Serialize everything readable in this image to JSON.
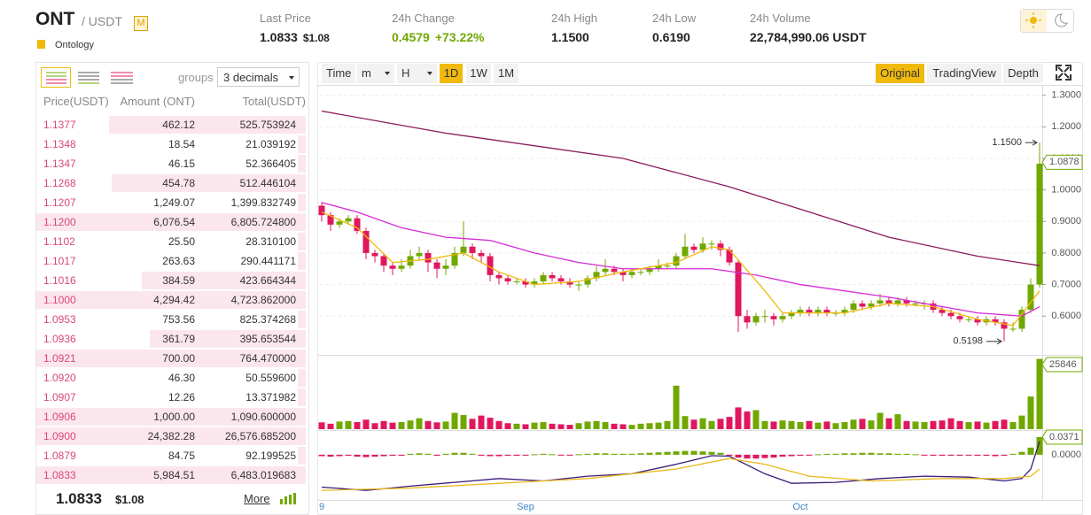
{
  "header": {
    "symbol": "ONT",
    "quote": "/ USDT",
    "badge": "M",
    "name": "Ontology",
    "stats": [
      {
        "label": "Last Price",
        "value": "1.0833",
        "sub": "$1.08"
      },
      {
        "label": "24h Change",
        "value": "0.4579",
        "sub": "+73.22%"
      },
      {
        "label": "24h High",
        "value": "1.1500"
      },
      {
        "label": "24h Low",
        "value": "0.6190"
      },
      {
        "label": "24h Volume",
        "value": "22,784,990.06 USDT"
      }
    ]
  },
  "orderbook": {
    "groups_label": "groups",
    "decimals": "3 decimals",
    "columns": [
      "Price(USDT)",
      "Amount (ONT)",
      "Total(USDT)"
    ],
    "rows": [
      [
        "1.1377",
        "462.12",
        "525.753924",
        73
      ],
      [
        "1.1348",
        "18.54",
        "21.039192",
        3
      ],
      [
        "1.1347",
        "46.15",
        "52.366405",
        3
      ],
      [
        "1.1268",
        "454.78",
        "512.446104",
        72
      ],
      [
        "1.1207",
        "1,249.07",
        "1,399.832749",
        3
      ],
      [
        "1.1200",
        "6,076.54",
        "6,805.724800",
        100
      ],
      [
        "1.1102",
        "25.50",
        "28.310100",
        3
      ],
      [
        "1.1017",
        "263.63",
        "290.441171",
        3
      ],
      [
        "1.1016",
        "384.59",
        "423.664344",
        61
      ],
      [
        "1.1000",
        "4,294.42",
        "4,723.862000",
        100
      ],
      [
        "1.0953",
        "753.56",
        "825.374268",
        3
      ],
      [
        "1.0936",
        "361.79",
        "395.653544",
        58
      ],
      [
        "1.0921",
        "700.00",
        "764.470000",
        100
      ],
      [
        "1.0920",
        "46.30",
        "50.559600",
        3
      ],
      [
        "1.0907",
        "12.26",
        "13.371982",
        3
      ],
      [
        "1.0906",
        "1,000.00",
        "1,090.600000",
        100
      ],
      [
        "1.0900",
        "24,382.28",
        "26,576.685200",
        100
      ],
      [
        "1.0879",
        "84.75",
        "92.199525",
        3
      ],
      [
        "1.0833",
        "5,984.51",
        "6,483.019683",
        100
      ]
    ],
    "last_price": "1.0833",
    "last_usd": "$1.08",
    "more": "More"
  },
  "toolbar": {
    "left": [
      "Time",
      "m",
      "H",
      "1D",
      "1W",
      "1M"
    ],
    "left_active": 3,
    "right": [
      "Original",
      "TradingView",
      "Depth"
    ],
    "right_active": 0
  },
  "chart_data": {
    "type": "candlestick",
    "up_color": "#70a800",
    "down_color": "#e0175e",
    "candles": [
      [
        0.95,
        0.96,
        0.9,
        0.92
      ],
      [
        0.92,
        0.93,
        0.87,
        0.89
      ],
      [
        0.89,
        0.91,
        0.88,
        0.9
      ],
      [
        0.9,
        0.92,
        0.89,
        0.91
      ],
      [
        0.91,
        0.92,
        0.86,
        0.87
      ],
      [
        0.87,
        0.88,
        0.78,
        0.8
      ],
      [
        0.8,
        0.81,
        0.77,
        0.79
      ],
      [
        0.79,
        0.8,
        0.74,
        0.76
      ],
      [
        0.76,
        0.77,
        0.73,
        0.75
      ],
      [
        0.75,
        0.78,
        0.74,
        0.76
      ],
      [
        0.76,
        0.81,
        0.75,
        0.79
      ],
      [
        0.79,
        0.82,
        0.78,
        0.8
      ],
      [
        0.8,
        0.81,
        0.74,
        0.77
      ],
      [
        0.77,
        0.78,
        0.72,
        0.75
      ],
      [
        0.75,
        0.78,
        0.73,
        0.76
      ],
      [
        0.76,
        0.82,
        0.75,
        0.8
      ],
      [
        0.8,
        0.9,
        0.79,
        0.82
      ],
      [
        0.82,
        0.83,
        0.78,
        0.8
      ],
      [
        0.8,
        0.81,
        0.77,
        0.79
      ],
      [
        0.79,
        0.8,
        0.71,
        0.73
      ],
      [
        0.73,
        0.74,
        0.7,
        0.72
      ],
      [
        0.72,
        0.73,
        0.7,
        0.71
      ],
      [
        0.71,
        0.72,
        0.7,
        0.71
      ],
      [
        0.71,
        0.72,
        0.69,
        0.7
      ],
      [
        0.7,
        0.72,
        0.69,
        0.71
      ],
      [
        0.71,
        0.74,
        0.7,
        0.73
      ],
      [
        0.73,
        0.74,
        0.71,
        0.72
      ],
      [
        0.72,
        0.73,
        0.7,
        0.71
      ],
      [
        0.71,
        0.72,
        0.69,
        0.7
      ],
      [
        0.7,
        0.71,
        0.68,
        0.7
      ],
      [
        0.7,
        0.73,
        0.69,
        0.72
      ],
      [
        0.72,
        0.76,
        0.71,
        0.74
      ],
      [
        0.74,
        0.78,
        0.73,
        0.75
      ],
      [
        0.75,
        0.76,
        0.73,
        0.74
      ],
      [
        0.74,
        0.75,
        0.71,
        0.73
      ],
      [
        0.73,
        0.75,
        0.72,
        0.74
      ],
      [
        0.74,
        0.75,
        0.73,
        0.74
      ],
      [
        0.74,
        0.76,
        0.73,
        0.75
      ],
      [
        0.75,
        0.78,
        0.74,
        0.76
      ],
      [
        0.76,
        0.77,
        0.75,
        0.76
      ],
      [
        0.76,
        0.8,
        0.75,
        0.79
      ],
      [
        0.79,
        0.86,
        0.78,
        0.82
      ],
      [
        0.82,
        0.83,
        0.8,
        0.81
      ],
      [
        0.81,
        0.85,
        0.8,
        0.83
      ],
      [
        0.83,
        0.84,
        0.81,
        0.83
      ],
      [
        0.83,
        0.84,
        0.79,
        0.81
      ],
      [
        0.81,
        0.82,
        0.76,
        0.77
      ],
      [
        0.77,
        0.78,
        0.55,
        0.6
      ],
      [
        0.6,
        0.62,
        0.56,
        0.58
      ],
      [
        0.58,
        0.61,
        0.57,
        0.6
      ],
      [
        0.6,
        0.62,
        0.58,
        0.6
      ],
      [
        0.6,
        0.61,
        0.57,
        0.59
      ],
      [
        0.59,
        0.61,
        0.58,
        0.6
      ],
      [
        0.6,
        0.62,
        0.59,
        0.61
      ],
      [
        0.61,
        0.63,
        0.6,
        0.62
      ],
      [
        0.62,
        0.63,
        0.6,
        0.61
      ],
      [
        0.61,
        0.63,
        0.6,
        0.62
      ],
      [
        0.62,
        0.63,
        0.6,
        0.61
      ],
      [
        0.61,
        0.62,
        0.6,
        0.61
      ],
      [
        0.61,
        0.63,
        0.6,
        0.62
      ],
      [
        0.62,
        0.65,
        0.61,
        0.64
      ],
      [
        0.64,
        0.65,
        0.62,
        0.63
      ],
      [
        0.63,
        0.65,
        0.62,
        0.64
      ],
      [
        0.64,
        0.67,
        0.63,
        0.65
      ],
      [
        0.65,
        0.66,
        0.63,
        0.64
      ],
      [
        0.64,
        0.66,
        0.63,
        0.65
      ],
      [
        0.65,
        0.66,
        0.63,
        0.64
      ],
      [
        0.64,
        0.65,
        0.63,
        0.64
      ],
      [
        0.64,
        0.65,
        0.62,
        0.64
      ],
      [
        0.64,
        0.65,
        0.61,
        0.62
      ],
      [
        0.62,
        0.63,
        0.6,
        0.61
      ],
      [
        0.61,
        0.62,
        0.59,
        0.6
      ],
      [
        0.6,
        0.61,
        0.58,
        0.59
      ],
      [
        0.59,
        0.6,
        0.58,
        0.59
      ],
      [
        0.59,
        0.6,
        0.57,
        0.58
      ],
      [
        0.58,
        0.6,
        0.57,
        0.59
      ],
      [
        0.59,
        0.6,
        0.57,
        0.58
      ],
      [
        0.58,
        0.59,
        0.5198,
        0.56
      ],
      [
        0.56,
        0.58,
        0.55,
        0.56
      ],
      [
        0.56,
        0.63,
        0.55,
        0.62
      ],
      [
        0.62,
        0.72,
        0.61,
        0.7
      ],
      [
        0.7,
        1.15,
        0.69,
        1.0833
      ]
    ],
    "ylim": [
      0.48,
      1.33
    ],
    "yticks": [
      {
        "value": 1.3,
        "label": "1.3000"
      },
      {
        "value": 1.2,
        "label": "1.2000"
      },
      {
        "value": 1.1,
        "label": "1.1000"
      },
      {
        "value": 1.0,
        "label": "1.0000"
      },
      {
        "value": 0.9,
        "label": "0.9000"
      },
      {
        "value": 0.8,
        "label": "0.8000"
      },
      {
        "value": 0.7,
        "label": "0.7000"
      },
      {
        "value": 0.6,
        "label": "0.6000"
      }
    ],
    "grid": true,
    "lines": [
      {
        "color": "#8b1a5e",
        "x": [
          0,
          14,
          34,
          46,
          64,
          74,
          81
        ],
        "values": [
          1.25,
          1.18,
          1.1,
          1.01,
          0.85,
          0.79,
          0.76
        ]
      },
      {
        "color": "#d62ad6",
        "x": [
          0,
          4,
          9,
          14,
          19,
          24,
          29,
          34,
          44,
          49,
          54,
          64,
          74,
          79,
          81
        ],
        "values": [
          0.96,
          0.93,
          0.88,
          0.85,
          0.84,
          0.8,
          0.77,
          0.75,
          0.75,
          0.73,
          0.7,
          0.66,
          0.61,
          0.6,
          0.63
        ]
      },
      {
        "color": "#f0b90b",
        "x": [
          0,
          4,
          8,
          12,
          16,
          20,
          24,
          29,
          34,
          40,
          44,
          46,
          50,
          52,
          59,
          64,
          69,
          74,
          78,
          81
        ],
        "values": [
          0.93,
          0.88,
          0.77,
          0.78,
          0.8,
          0.74,
          0.7,
          0.71,
          0.74,
          0.77,
          0.82,
          0.81,
          0.68,
          0.61,
          0.61,
          0.64,
          0.63,
          0.59,
          0.57,
          0.68
        ]
      }
    ],
    "high_annotation": {
      "index": 81,
      "value": 1.15,
      "label": "1.1500"
    },
    "low_annotation": {
      "index": 77,
      "value": 0.5198,
      "label": "0.5198"
    },
    "price_tag": {
      "value": 1.0878,
      "label": "1.0878"
    },
    "date_labels": [
      {
        "index": 0,
        "label": "9"
      },
      {
        "index": 23,
        "label": "Sep"
      },
      {
        "index": 54,
        "label": "Oct"
      }
    ],
    "volume": {
      "ylim": [
        0,
        27
      ],
      "tag": "25846",
      "values": [
        2.5,
        2.0,
        2.8,
        3.0,
        2.6,
        3.5,
        2.2,
        3.0,
        2.4,
        2.6,
        3.2,
        4.0,
        3.0,
        2.5,
        2.8,
        6.0,
        5.2,
        3.8,
        5.0,
        4.2,
        3.0,
        2.2,
        2.0,
        1.8,
        2.4,
        2.6,
        2.0,
        1.8,
        1.6,
        2.2,
        2.8,
        3.0,
        2.6,
        2.0,
        1.8,
        1.6,
        2.0,
        2.2,
        2.4,
        3.0,
        16.0,
        4.8,
        3.5,
        4.0,
        3.0,
        3.8,
        4.5,
        8.0,
        6.5,
        7.0,
        3.0,
        2.8,
        3.2,
        3.0,
        2.6,
        3.0,
        2.4,
        2.8,
        2.2,
        2.6,
        3.5,
        3.8,
        3.2,
        6.0,
        4.0,
        5.5,
        3.0,
        2.8,
        2.6,
        3.0,
        3.2,
        4.0,
        3.0,
        2.6,
        2.8,
        2.4,
        3.0,
        3.5,
        2.6,
        5.0,
        12.0,
        25.846977
      ]
    },
    "macd": {
      "ylim": [
        -0.095,
        0.05
      ],
      "yticks": [
        {
          "value": 0,
          "label": "0.0000"
        }
      ],
      "tag": {
        "value": 0.0371,
        "label": "0.0371"
      },
      "hist": [
        -0.003,
        -0.004,
        -0.003,
        -0.002,
        -0.004,
        -0.005,
        -0.004,
        -0.003,
        -0.002,
        -0.002,
        0.002,
        0.003,
        0.002,
        -0.002,
        0.002,
        0.004,
        0.004,
        0.002,
        -0.002,
        -0.003,
        -0.003,
        -0.002,
        -0.002,
        -0.001,
        0.001,
        0.002,
        0.001,
        -0.001,
        -0.001,
        0.001,
        0.002,
        0.003,
        0.003,
        0.002,
        0.002,
        0.002,
        0.003,
        0.004,
        0.005,
        0.006,
        0.007,
        0.008,
        0.008,
        0.007,
        0.006,
        0.004,
        -0.002,
        -0.006,
        -0.008,
        -0.008,
        -0.007,
        -0.006,
        -0.004,
        -0.003,
        -0.002,
        -0.001,
        0.001,
        0.002,
        0.002,
        0.003,
        0.003,
        0.004,
        0.004,
        0.003,
        0.003,
        0.002,
        0.002,
        0.001,
        -0.001,
        -0.002,
        -0.002,
        -0.002,
        -0.002,
        -0.001,
        -0.002,
        -0.002,
        -0.003,
        -0.002,
        0.002,
        0.006,
        0.015,
        0.0371
      ],
      "lines": [
        {
          "color": "#3a1a7a",
          "x": [
            0,
            5,
            10,
            15,
            20,
            25,
            30,
            35,
            40,
            44,
            46,
            50,
            53,
            58,
            63,
            68,
            73,
            77,
            79,
            80,
            81
          ],
          "values": [
            -0.068,
            -0.075,
            -0.066,
            -0.058,
            -0.05,
            -0.055,
            -0.045,
            -0.04,
            -0.02,
            -0.002,
            -0.003,
            -0.04,
            -0.06,
            -0.058,
            -0.05,
            -0.045,
            -0.047,
            -0.055,
            -0.05,
            -0.03,
            0.028
          ]
        },
        {
          "color": "#e8b820",
          "x": [
            0,
            10,
            20,
            30,
            40,
            46,
            50,
            55,
            62,
            70,
            77,
            80,
            81
          ],
          "values": [
            -0.075,
            -0.07,
            -0.06,
            -0.05,
            -0.03,
            -0.008,
            -0.02,
            -0.045,
            -0.055,
            -0.05,
            -0.05,
            -0.045,
            -0.03
          ]
        }
      ]
    }
  }
}
